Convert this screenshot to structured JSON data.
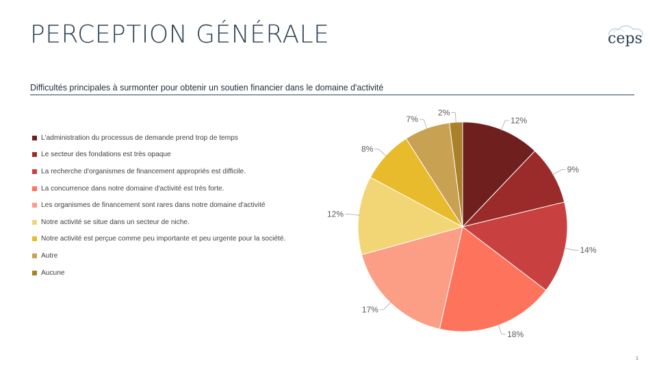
{
  "slide": {
    "title": "PERCEPTION GÉNÉRALE",
    "subtitle": "Difficultés  principales  à surmonter pour obtenir un soutien financier  dans le domaine d'activité",
    "page_number": "1",
    "logo_text": "ceps"
  },
  "chart_data": {
    "type": "pie",
    "title": "Difficultés  principales  à surmonter pour obtenir un soutien financier  dans le domaine d'activité",
    "legend_position": "left",
    "categories": [
      "L'administration du processus de demande prend trop de temps",
      "Le secteur des fondations est très opaque",
      "La recherche d'organismes de financement appropriés est difficile.",
      "La concurrence dans notre domaine d'activité est très forte.",
      "Les organismes de financement  sont rares dans notre domaine d'activité",
      "Notre activité se situe dans un secteur de niche.",
      "Notre activité est perçue comme peu importante et peu urgente pour la société.",
      "Autre",
      "Aucune"
    ],
    "values": [
      12,
      9,
      14,
      18,
      17,
      12,
      8,
      7,
      2
    ],
    "labels": [
      "12%",
      "9%",
      "14%",
      "18%",
      "17%",
      "12%",
      "8%",
      "7%",
      "2%"
    ],
    "colors": [
      "#701f1f",
      "#9b2b2b",
      "#c8403f",
      "#fd735b",
      "#fc9d86",
      "#f2d574",
      "#e7bb2b",
      "#c9a153",
      "#a8812a"
    ]
  }
}
